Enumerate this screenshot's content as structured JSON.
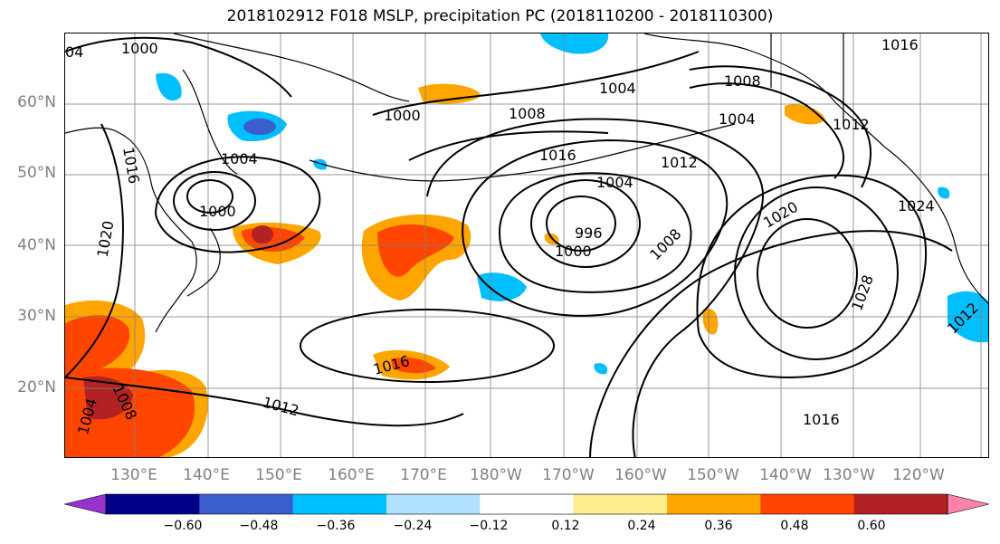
{
  "title": "2018102912 F018 MSLP, precipitation PC (2018110200 - 2018110300)",
  "latitude_labels": [
    "60°N",
    "50°N",
    "40°N",
    "30°N",
    "20°N"
  ],
  "longitude_labels": [
    "130°E",
    "140°E",
    "150°E",
    "160°E",
    "170°E",
    "180°W",
    "170°W",
    "160°W",
    "150°W",
    "140°W",
    "130°W",
    "120°W"
  ],
  "isobar_labels": [
    {
      "id": "c1000-nw",
      "text": "1000"
    },
    {
      "id": "c04-nw",
      "text": "04"
    },
    {
      "id": "c1000-okhotsk",
      "text": "1000"
    },
    {
      "id": "c1004-japan",
      "text": "1004"
    },
    {
      "id": "c1000-japan",
      "text": "1000"
    },
    {
      "id": "c1016-west",
      "text": "1016"
    },
    {
      "id": "c1020-west",
      "text": "1020"
    },
    {
      "id": "c1008-north",
      "text": "1008"
    },
    {
      "id": "c1004-bering",
      "text": "1004"
    },
    {
      "id": "c1016-center",
      "text": "1016"
    },
    {
      "id": "c1004-low",
      "text": "1004"
    },
    {
      "id": "c996-low",
      "text": "996"
    },
    {
      "id": "c1000-low",
      "text": "1000"
    },
    {
      "id": "c1012-center",
      "text": "1012"
    },
    {
      "id": "c1008-center",
      "text": "1008"
    },
    {
      "id": "c1008-alaska",
      "text": "1008"
    },
    {
      "id": "c1004-alaska",
      "text": "1004"
    },
    {
      "id": "c1012-alaska",
      "text": "1012"
    },
    {
      "id": "c1016-alaska",
      "text": "1016"
    },
    {
      "id": "c1020-high",
      "text": "1020"
    },
    {
      "id": "c1024-high",
      "text": "1024"
    },
    {
      "id": "c1028-high",
      "text": "1028"
    },
    {
      "id": "c1016-south",
      "text": "1016"
    },
    {
      "id": "c1012-south",
      "text": "1012"
    },
    {
      "id": "c1016-subtrop",
      "text": "1016"
    },
    {
      "id": "c1008-sw",
      "text": "1008"
    },
    {
      "id": "c1004-sw",
      "text": "1004"
    },
    {
      "id": "c1012-east",
      "text": "1012"
    }
  ],
  "colorbar": {
    "ticks": [
      "−0.60",
      "−0.48",
      "−0.36",
      "−0.24",
      "−0.12",
      "0.12",
      "0.24",
      "0.36",
      "0.48",
      "0.60"
    ],
    "colors": [
      "#9932cc",
      "#00008b",
      "#3a5fcd",
      "#00bfff",
      "#b0e2ff",
      "#ffffff",
      "#ffec8b",
      "#ffa500",
      "#ff4500",
      "#b22222",
      "#ff82ab"
    ]
  },
  "colors": {
    "grid": "#808080",
    "coastline": "#000000",
    "isobar": "#000000",
    "label": "#808080"
  }
}
